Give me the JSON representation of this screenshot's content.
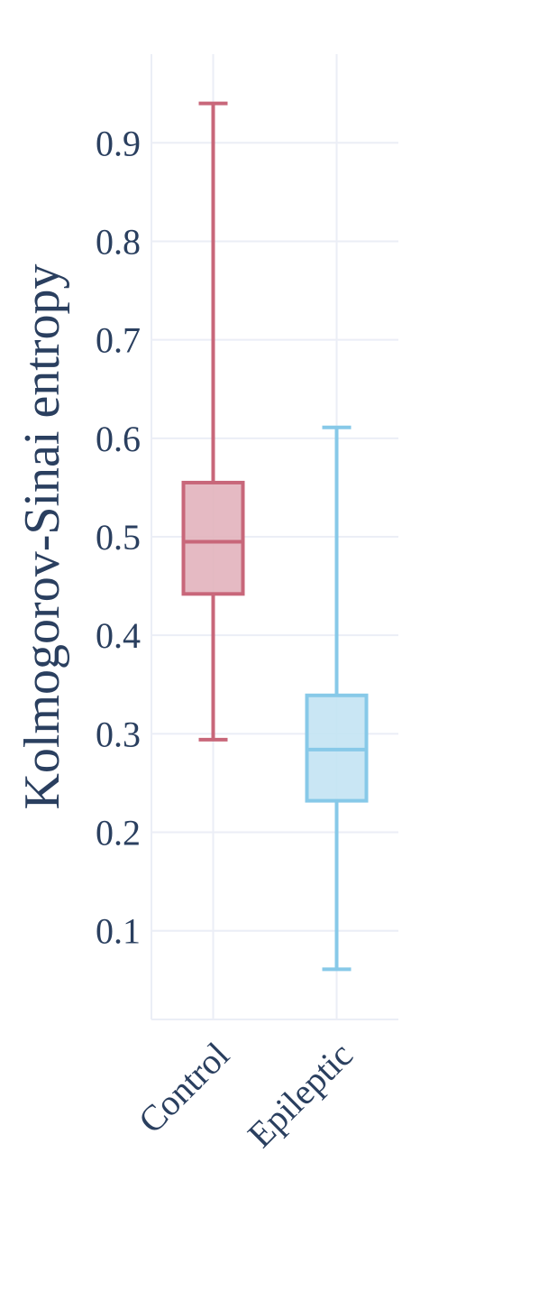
{
  "chart_data": {
    "type": "box",
    "ylabel": "Kolmogorov-Sinai entropy",
    "xlabel": "",
    "yticks": [
      0.1,
      0.2,
      0.3,
      0.4,
      0.5,
      0.6,
      0.7,
      0.8,
      0.9
    ],
    "ytick_labels": [
      "0.1",
      "0.2",
      "0.3",
      "0.4",
      "0.5",
      "0.6",
      "0.7",
      "0.8",
      "0.9"
    ],
    "ylim": [
      0.01,
      0.99
    ],
    "grid": true,
    "legend": "none",
    "categories": [
      "Control",
      "Epileptic"
    ],
    "boxes": [
      {
        "category": "Control",
        "min": 0.294,
        "q1": 0.442,
        "median": 0.495,
        "q3": 0.555,
        "max": 0.94,
        "color": "#c8677a",
        "fill": "#e2b3bc"
      },
      {
        "category": "Epileptic",
        "min": 0.061,
        "q1": 0.232,
        "median": 0.284,
        "q3": 0.339,
        "max": 0.611,
        "color": "#87c9e8",
        "fill": "#c3e3f3"
      }
    ]
  }
}
